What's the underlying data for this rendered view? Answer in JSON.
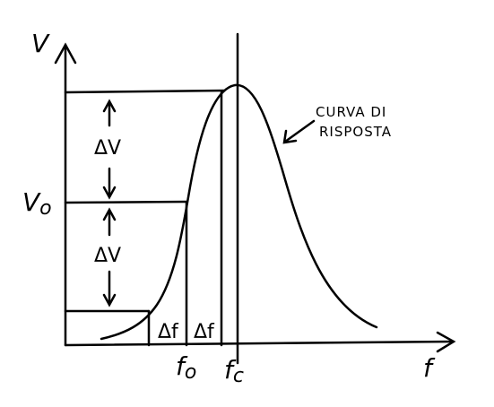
{
  "axes": {
    "y_label": "V",
    "x_label": "f"
  },
  "levels": {
    "v0": {
      "main": "V",
      "sub": "o"
    },
    "delta_v": [
      "ΔV",
      "ΔV"
    ]
  },
  "frequencies": {
    "f0": {
      "main": "f",
      "sub": "o"
    },
    "fc": {
      "main": "f",
      "sub": "c"
    },
    "delta_f": [
      "Δf",
      "Δf"
    ]
  },
  "annotation": {
    "lines": [
      "CURVA DI",
      "RISPOSTA"
    ]
  }
}
